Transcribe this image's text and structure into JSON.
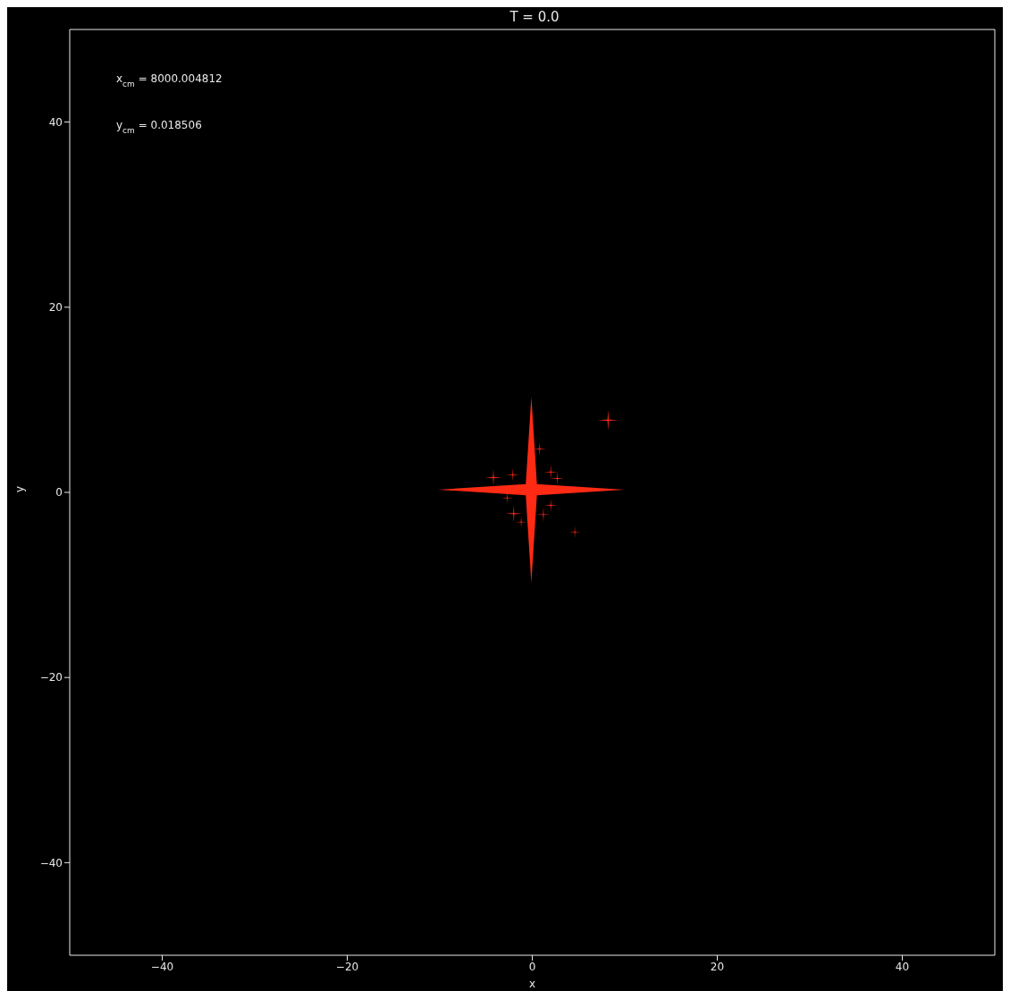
{
  "chart_data": {
    "type": "bubble",
    "title": "T = 0.0",
    "xlabel": "x",
    "ylabel": "y",
    "xlim": [
      -50,
      50
    ],
    "ylim": [
      -50,
      50
    ],
    "xticks": [
      -40,
      -20,
      0,
      20,
      40
    ],
    "yticks": [
      -40,
      -20,
      0,
      20,
      40
    ],
    "legend": false,
    "marker": "star",
    "annotations": [
      "x$_{cm}$ = 8000.004812",
      "y$_{cm}$ = 0.018506"
    ],
    "series": [
      {
        "color": "#ff2a14",
        "x": [
          -0.1,
          8.2,
          0.8,
          -4.2,
          -2.1,
          2.0,
          2.7,
          -2.0,
          -1.2,
          1.2,
          2.0,
          4.6,
          -2.7
        ],
        "values": [
          0.3,
          7.8,
          4.7,
          1.6,
          1.9,
          2.2,
          1.5,
          -2.3,
          -3.2,
          -2.4,
          -1.4,
          -4.3,
          -0.6
        ],
        "sizes": [
          1,
          0.012,
          0.005,
          0.008,
          0.005,
          0.006,
          0.005,
          0.008,
          0.004,
          0.006,
          0.005,
          0.004,
          0.004
        ]
      }
    ]
  }
}
